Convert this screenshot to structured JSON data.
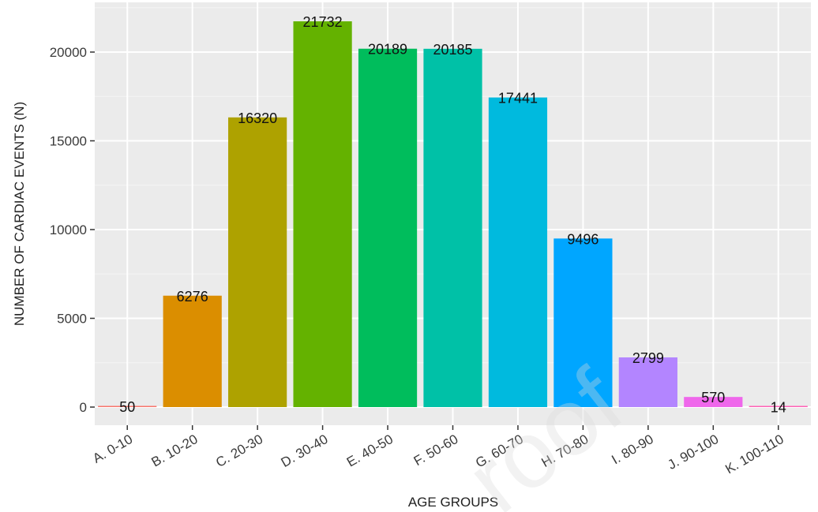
{
  "chart_data": {
    "type": "bar",
    "xlabel": "AGE GROUPS",
    "ylabel": "NUMBER OF CARDIAC EVENTS (N)",
    "ylim": [
      -1000,
      23000
    ],
    "yticks": [
      0,
      5000,
      10000,
      15000,
      20000
    ],
    "categories": [
      "A. 0-10",
      "B. 10-20",
      "C. 20-30",
      "D. 30-40",
      "E. 40-50",
      "F. 50-60",
      "G. 60-70",
      "H. 70-80",
      "I. 80-90",
      "J. 90-100",
      "K. 100-110"
    ],
    "values": [
      50,
      6276,
      16320,
      21732,
      20189,
      20185,
      17441,
      9496,
      2799,
      570,
      14
    ],
    "data_labels": [
      "50",
      "6276",
      "16320",
      "21732",
      "20189",
      "20185",
      "17441",
      "9496",
      "2799",
      "570",
      "14"
    ],
    "colors": [
      "#F8766D",
      "#DB8E00",
      "#AEA200",
      "#64B200",
      "#00BD5C",
      "#00C1A7",
      "#00BADE",
      "#00A6FF",
      "#B385FF",
      "#EF67EB",
      "#FF63B6"
    ],
    "grid": true,
    "legend": "none",
    "panel_background": "#EBEBEB",
    "watermark": "roof"
  }
}
